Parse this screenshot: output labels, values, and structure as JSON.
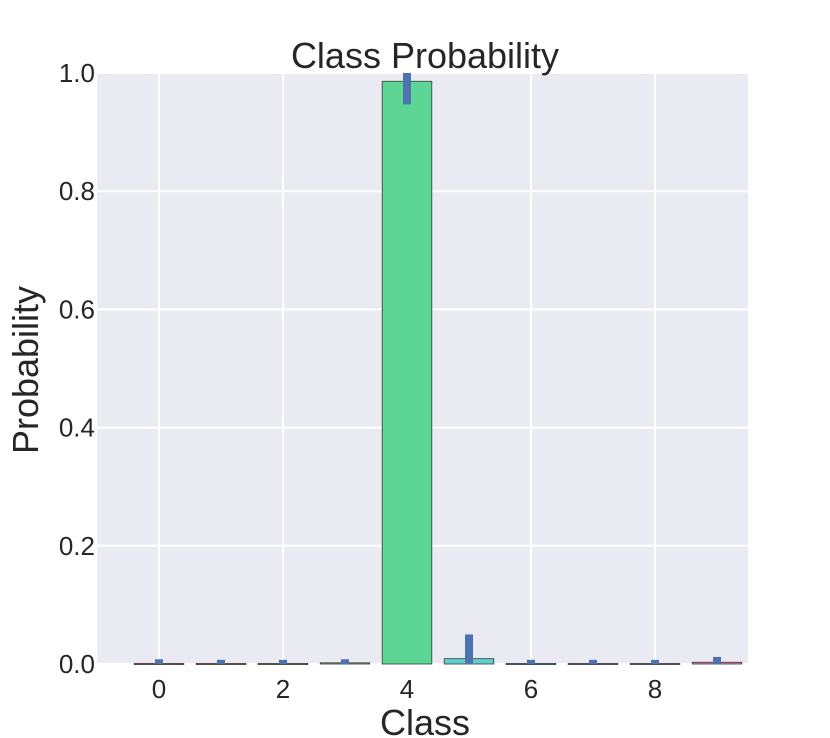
{
  "chart_data": {
    "type": "bar",
    "title": "Class Probability",
    "xlabel": "Class",
    "ylabel": "Probability",
    "categories": [
      0,
      1,
      2,
      3,
      4,
      5,
      6,
      7,
      8,
      9
    ],
    "values": [
      0.001,
      0.001,
      0.001,
      0.002,
      0.986,
      0.009,
      0.001,
      0.001,
      0.001,
      0.003
    ],
    "errors": [
      {
        "low": 0.0,
        "high": 0.008
      },
      {
        "low": 0.0,
        "high": 0.007
      },
      {
        "low": 0.0,
        "high": 0.007
      },
      {
        "low": 0.0,
        "high": 0.008
      },
      {
        "low": 0.947,
        "high": 1.0
      },
      {
        "low": 0.0,
        "high": 0.05
      },
      {
        "low": 0.0,
        "high": 0.007
      },
      {
        "low": 0.0,
        "high": 0.007
      },
      {
        "low": 0.0,
        "high": 0.007
      },
      {
        "low": 0.0,
        "high": 0.012
      }
    ],
    "bar_colors": [
      "#e8828e",
      "#d9955a",
      "#b5a65a",
      "#7fb04f",
      "#5dd594",
      "#5ccfcf",
      "#6aaef0",
      "#a797f0",
      "#d888e0",
      "#e87fae"
    ],
    "error_color": "#4c72b0",
    "xticks": [
      "0",
      "2",
      "4",
      "6",
      "8"
    ],
    "xtick_values": [
      0,
      2,
      4,
      6,
      8
    ],
    "yticks": [
      "0.0",
      "0.2",
      "0.4",
      "0.6",
      "0.8",
      "1.0"
    ],
    "ytick_values": [
      0.0,
      0.2,
      0.4,
      0.6,
      0.8,
      1.0
    ],
    "xlim": [
      -1,
      9.5
    ],
    "ylim": [
      0,
      1.0
    ],
    "grid": true,
    "background": "#eaeaf2"
  }
}
